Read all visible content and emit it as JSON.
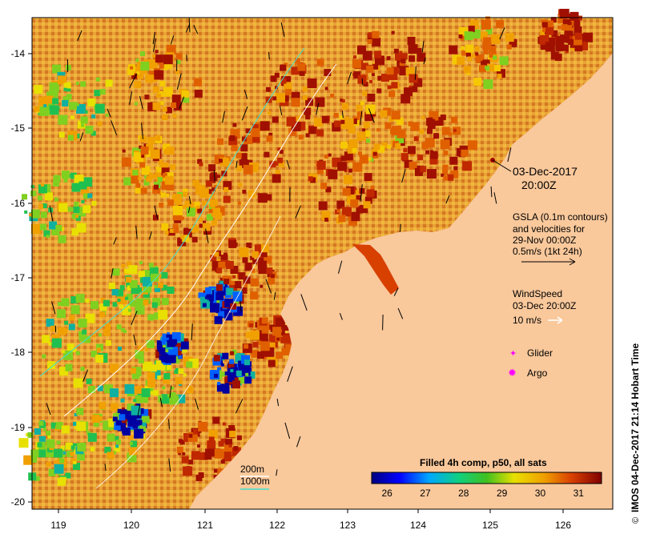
{
  "map": {
    "x_ticks": [
      "119",
      "120",
      "121",
      "122",
      "123",
      "124",
      "125",
      "126"
    ],
    "y_ticks": [
      "-14",
      "-15",
      "-16",
      "-17",
      "-18",
      "-19",
      "-20"
    ],
    "land_color": "#f9c89b",
    "background_ocean_color": "#e9a23a"
  },
  "annotation": {
    "date_line1": "03-Dec-2017",
    "date_line2": "20:00Z"
  },
  "gsla": {
    "line1": "GSLA (0.1m contours)",
    "line2": "and velocities for",
    "line3": "29-Nov 00:00Z",
    "scale_label": "0.5m/s (1kt 24h)"
  },
  "wind": {
    "title": "WindSpeed",
    "date": "03-Dec 20:00Z",
    "scale_label": "10 m/s"
  },
  "legend": {
    "glider": "Glider",
    "argo": "Argo",
    "glider_color": "#ff00ff",
    "argo_color": "#ff00ff"
  },
  "depth_legend": {
    "contour_200": "200m",
    "contour_1000": "1000m",
    "contour_1000_color": "#40e0d0"
  },
  "colorbar": {
    "title": "Filled 4h comp, p50, all sats",
    "ticks": [
      "26",
      "27",
      "28",
      "29",
      "30",
      "31"
    ],
    "range": [
      25.6,
      31.6
    ]
  },
  "credit": "IMOS 04-Dec-2017 21:14 Hobart Time"
}
